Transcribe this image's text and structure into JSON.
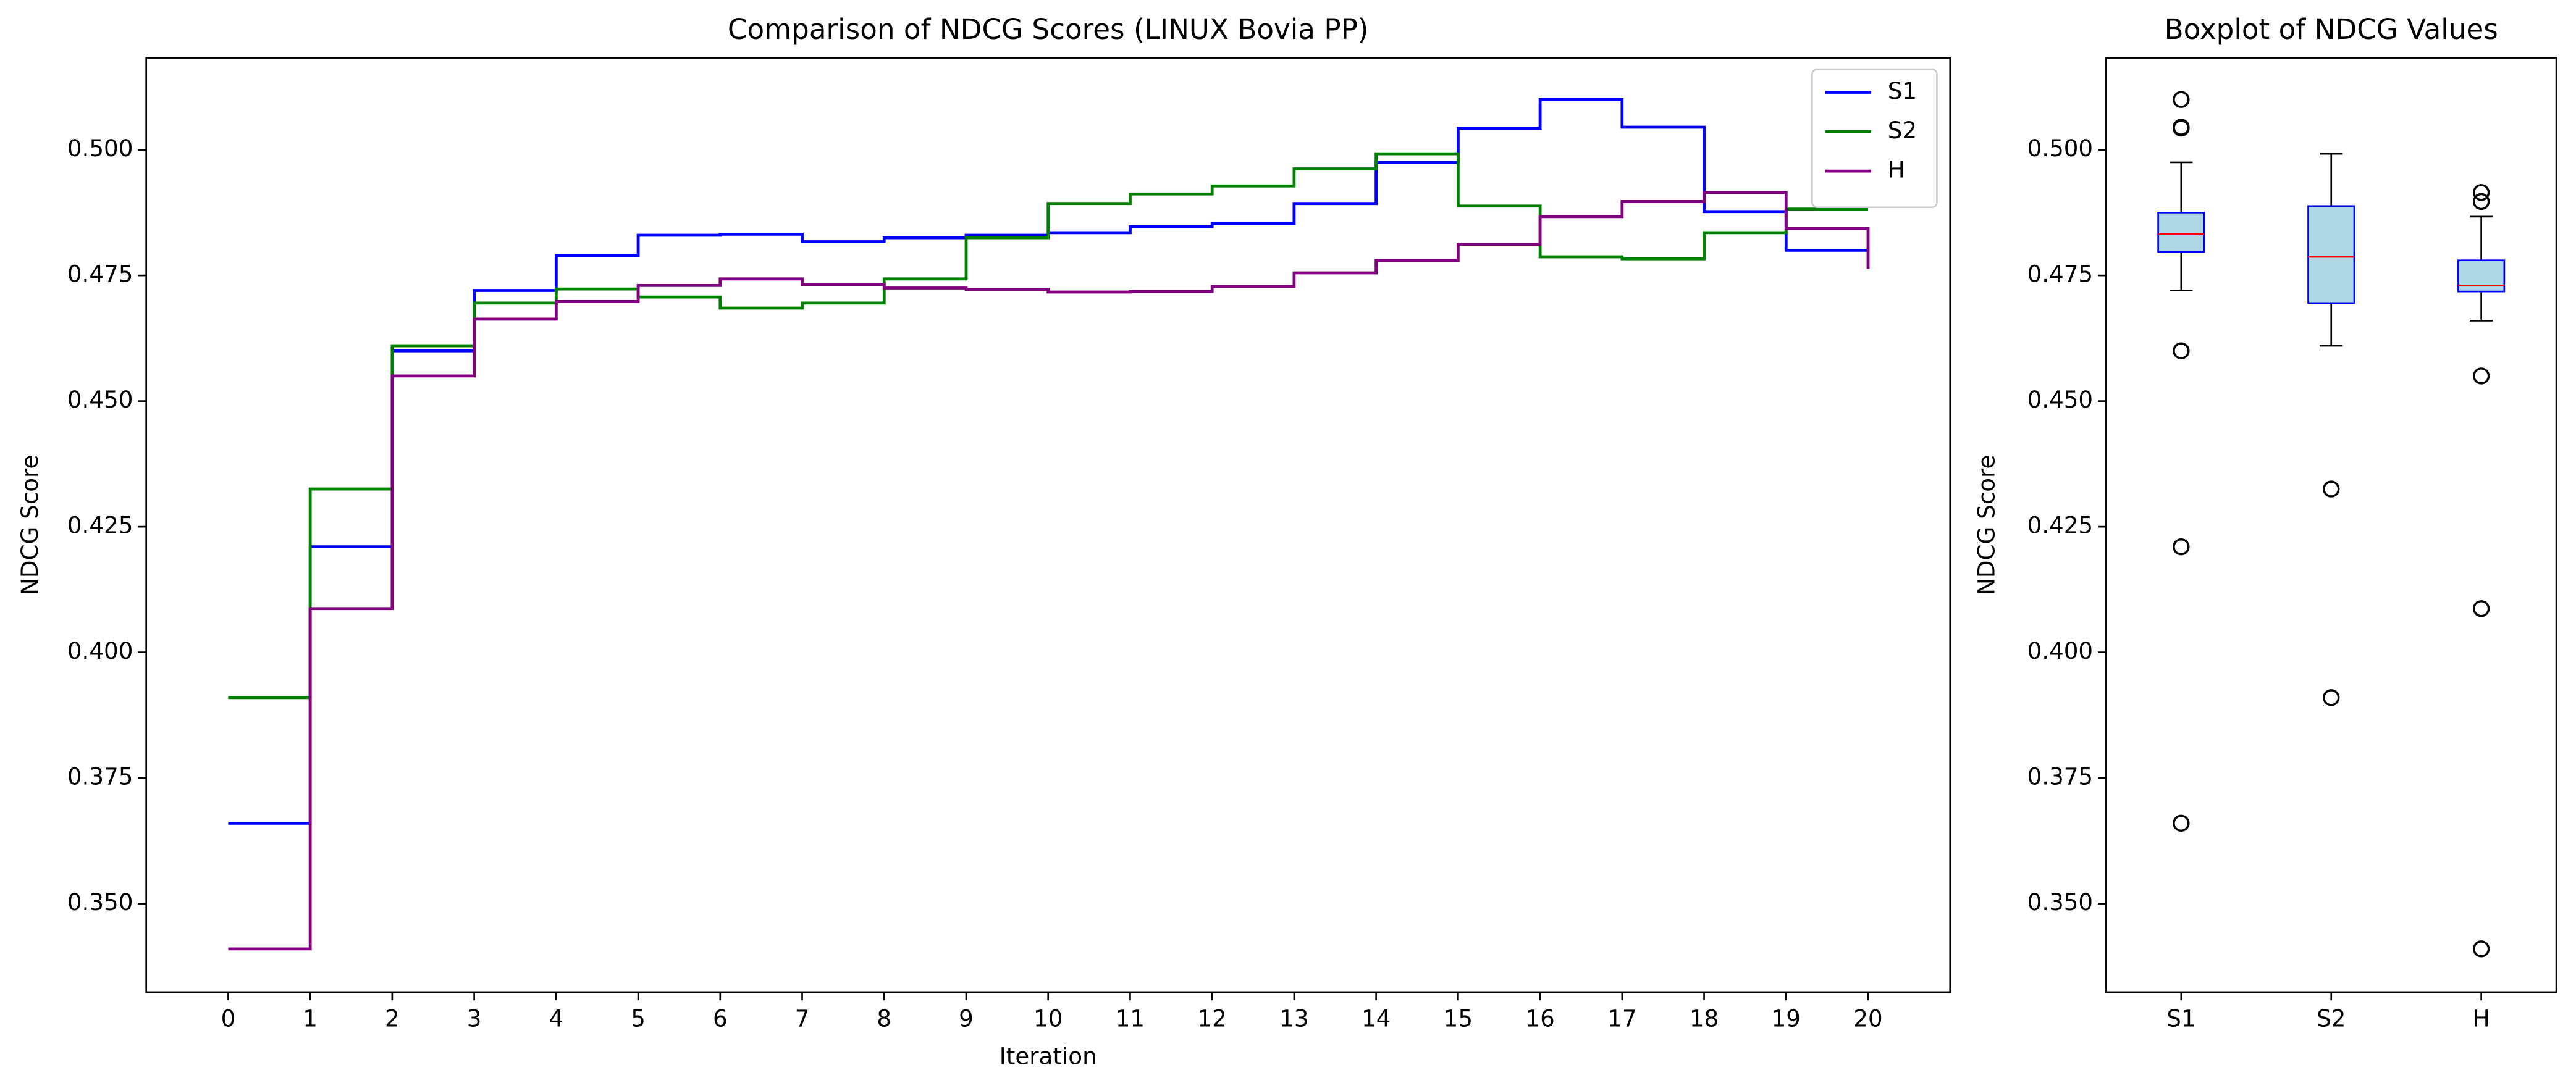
{
  "chart_data": [
    {
      "type": "step",
      "title": "Comparison of NDCG Scores (LINUX Bovia PP)",
      "x_label": "Iteration",
      "y_label": "NDCG Score",
      "x": [
        0,
        1,
        2,
        3,
        4,
        5,
        6,
        7,
        8,
        9,
        10,
        11,
        12,
        13,
        14,
        15,
        16,
        17,
        18,
        19,
        20
      ],
      "series": [
        {
          "name": "S1",
          "color": "#0000ff",
          "values": [
            0.366,
            0.421,
            0.46,
            0.472,
            0.479,
            0.483,
            0.4832,
            0.4817,
            0.4825,
            0.483,
            0.4835,
            0.4847,
            0.4853,
            0.4893,
            0.4975,
            0.5043,
            0.51,
            0.5045,
            0.4877,
            0.48,
            0.4798
          ]
        },
        {
          "name": "S2",
          "color": "#008000",
          "values": [
            0.391,
            0.4325,
            0.461,
            0.4695,
            0.4723,
            0.4707,
            0.4685,
            0.4695,
            0.4743,
            0.4825,
            0.4893,
            0.4912,
            0.4928,
            0.4962,
            0.4992,
            0.4888,
            0.4787,
            0.4783,
            0.4835,
            0.4882,
            0.4882
          ]
        },
        {
          "name": "H",
          "color": "#800080",
          "values": [
            0.341,
            0.4087,
            0.455,
            0.4663,
            0.4698,
            0.473,
            0.4743,
            0.4732,
            0.4725,
            0.4722,
            0.4717,
            0.4718,
            0.4728,
            0.4755,
            0.478,
            0.4812,
            0.4867,
            0.4897,
            0.4915,
            0.4843,
            0.4763
          ]
        }
      ],
      "xlim": [
        -1,
        21
      ],
      "xticks": [
        0,
        1,
        2,
        3,
        4,
        5,
        6,
        7,
        8,
        9,
        10,
        11,
        12,
        13,
        14,
        15,
        16,
        17,
        18,
        19,
        20
      ],
      "ylim": [
        0.3324,
        0.5183
      ],
      "yticks": [
        {
          "value": 0.35,
          "label": "0.350"
        },
        0.375,
        {
          "value": 0.4,
          "label": "0.400"
        },
        0.425,
        {
          "value": 0.45,
          "label": "0.450"
        },
        0.475,
        {
          "value": 0.5,
          "label": "0.500"
        }
      ],
      "legend": "upper right"
    },
    {
      "type": "box",
      "title": "Boxplot of NDCG Values",
      "y_label": "NDCG Score",
      "categories": [
        "S1",
        "S2",
        "H"
      ],
      "color": "#add8e6",
      "edge_color": "#0000ff",
      "median_color": "#ff0000",
      "q1": [
        0.4797,
        0.4695,
        0.4718
      ],
      "median": [
        0.4832,
        0.4787,
        0.473
      ],
      "q3": [
        0.4875,
        0.4888,
        0.478
      ],
      "whisker_low": [
        0.472,
        0.461,
        0.466
      ],
      "whisker_high": [
        0.4975,
        0.4992,
        0.4867
      ],
      "outliers": [
        [
          0.51,
          0.5045,
          0.5043,
          0.46,
          0.421,
          0.366
        ],
        [
          0.4325,
          0.391
        ],
        [
          0.4915,
          0.4897,
          0.455,
          0.4087,
          0.341
        ]
      ],
      "ylim": [
        0.3324,
        0.5183
      ],
      "yticks": [
        {
          "value": 0.35,
          "label": "0.350"
        },
        0.375,
        {
          "value": 0.4,
          "label": "0.400"
        },
        0.425,
        {
          "value": 0.45,
          "label": "0.450"
        },
        0.475,
        {
          "value": 0.5,
          "label": "0.500"
        }
      ]
    }
  ]
}
